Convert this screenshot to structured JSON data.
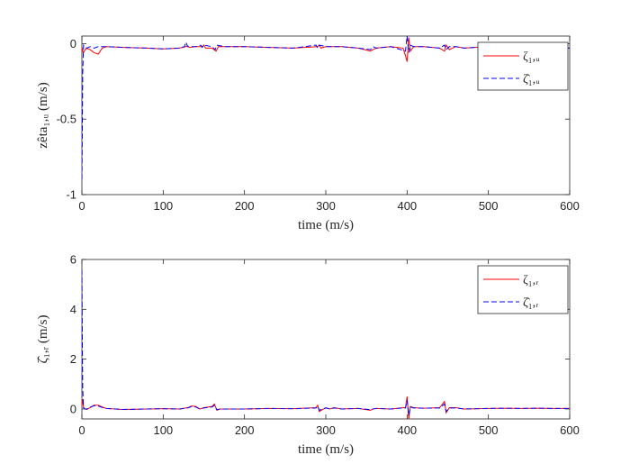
{
  "chart_data": [
    {
      "type": "line",
      "title": "",
      "xlabel": "time (m/s)",
      "ylabel": "zêta₁,ᵤ (m/s)",
      "xlim": [
        0,
        600
      ],
      "ylim": [
        -1,
        0.05
      ],
      "xticks": [
        "0",
        "100",
        "200",
        "300",
        "400",
        "500",
        "600"
      ],
      "yticks": [
        "0",
        "-0.5",
        "-1"
      ],
      "ytick_values": [
        0,
        -0.5,
        -1
      ],
      "grid": false,
      "legend": "top-right",
      "series": [
        {
          "name": "ζ₁,ᵤ",
          "color": "#ff0000",
          "style": "solid",
          "x": [
            0,
            1,
            2,
            4,
            6,
            10,
            15,
            20,
            25,
            30,
            50,
            80,
            100,
            120,
            128,
            130,
            132,
            140,
            148,
            150,
            152,
            160,
            165,
            168,
            175,
            200,
            230,
            260,
            290,
            292,
            294,
            300,
            320,
            340,
            355,
            358,
            362,
            380,
            395,
            398,
            400,
            402,
            404,
            408,
            420,
            440,
            446,
            448,
            452,
            460,
            470,
            500,
            520,
            540,
            560,
            580,
            600
          ],
          "values": [
            -0.02,
            -0.05,
            -0.06,
            -0.04,
            -0.03,
            -0.04,
            -0.06,
            -0.07,
            -0.03,
            -0.02,
            -0.025,
            -0.03,
            -0.035,
            -0.03,
            -0.02,
            -0.015,
            -0.025,
            -0.02,
            -0.02,
            -0.01,
            -0.03,
            -0.03,
            -0.05,
            -0.02,
            -0.02,
            -0.02,
            -0.025,
            -0.03,
            -0.02,
            -0.01,
            -0.03,
            -0.02,
            -0.02,
            -0.03,
            -0.05,
            -0.04,
            -0.03,
            -0.02,
            -0.03,
            -0.08,
            -0.12,
            0.04,
            -0.05,
            -0.02,
            -0.02,
            -0.03,
            -0.05,
            -0.01,
            -0.04,
            -0.02,
            -0.03,
            -0.02,
            -0.03,
            -0.025,
            -0.03,
            -0.03,
            -0.03
          ]
        },
        {
          "name": "ζ̂₁,ᵤ",
          "color": "#0000ff",
          "style": "dashed",
          "x": [
            0,
            0.5,
            1,
            2,
            4,
            6,
            10,
            15,
            20,
            25,
            30,
            50,
            80,
            100,
            120,
            126,
            128,
            130,
            140,
            146,
            148,
            150,
            160,
            164,
            166,
            175,
            200,
            230,
            260,
            288,
            290,
            292,
            300,
            320,
            340,
            355,
            358,
            362,
            380,
            398,
            400,
            402,
            404,
            408,
            420,
            440,
            446,
            448,
            452,
            460,
            470,
            500,
            520,
            540,
            560,
            580,
            600
          ],
          "values": [
            -0.9,
            -0.6,
            -0.2,
            -0.01,
            -0.02,
            -0.03,
            -0.02,
            -0.03,
            -0.02,
            -0.02,
            -0.02,
            -0.025,
            -0.03,
            -0.035,
            -0.03,
            -0.02,
            0.01,
            -0.02,
            -0.02,
            -0.01,
            -0.025,
            -0.01,
            -0.02,
            -0.04,
            -0.01,
            -0.02,
            -0.02,
            -0.025,
            -0.03,
            -0.01,
            -0.03,
            -0.01,
            -0.02,
            -0.02,
            -0.03,
            -0.04,
            -0.02,
            -0.03,
            -0.02,
            -0.05,
            0.05,
            -0.06,
            -0.01,
            -0.02,
            -0.02,
            -0.03,
            -0.01,
            -0.04,
            -0.02,
            -0.02,
            -0.03,
            -0.02,
            -0.03,
            -0.025,
            -0.03,
            -0.03,
            -0.03
          ]
        }
      ]
    },
    {
      "type": "line",
      "title": "",
      "xlabel": "time (m/s)",
      "ylabel": "ζ̂₁,ᵣ (m/s)",
      "xlim": [
        0,
        600
      ],
      "ylim": [
        -0.4,
        6
      ],
      "xticks": [
        "0",
        "100",
        "200",
        "300",
        "400",
        "500",
        "600"
      ],
      "yticks": [
        "6",
        "4",
        "2",
        "0"
      ],
      "ytick_values": [
        6,
        4,
        2,
        0
      ],
      "grid": false,
      "legend": "top-right",
      "series": [
        {
          "name": "ζ₁,ᵣ",
          "color": "#ff0000",
          "style": "solid",
          "x": [
            0,
            1,
            2,
            4,
            6,
            10,
            15,
            20,
            25,
            30,
            50,
            80,
            100,
            120,
            130,
            135,
            140,
            145,
            150,
            160,
            163,
            166,
            170,
            200,
            230,
            260,
            288,
            290,
            292,
            300,
            305,
            310,
            320,
            340,
            355,
            358,
            362,
            380,
            395,
            398,
            400,
            402,
            404,
            408,
            420,
            440,
            446,
            448,
            452,
            460,
            470,
            500,
            520,
            540,
            560,
            580,
            600
          ],
          "values": [
            0.1,
            0.4,
            0.05,
            0.0,
            -0.02,
            0.05,
            0.15,
            0.15,
            0.08,
            0.02,
            -0.02,
            0.0,
            0.01,
            0.0,
            0.05,
            0.12,
            0.1,
            0.0,
            0.05,
            0.1,
            0.2,
            -0.05,
            0.0,
            0.0,
            0.02,
            0.01,
            0.05,
            0.15,
            -0.1,
            0.05,
            0.0,
            0.05,
            0.0,
            0.02,
            -0.05,
            0.0,
            0.02,
            0.0,
            0.05,
            0.05,
            0.5,
            -0.4,
            0.1,
            0.05,
            0.03,
            0.05,
            0.3,
            -0.15,
            0.05,
            0.05,
            0.0,
            0.02,
            0.03,
            0.02,
            0.03,
            0.02,
            0.02
          ]
        },
        {
          "name": "ζ̂₁,ᵣ",
          "color": "#0000ff",
          "style": "dashed",
          "x": [
            0,
            0.5,
            1,
            2,
            4,
            6,
            10,
            15,
            20,
            25,
            30,
            50,
            80,
            100,
            120,
            130,
            135,
            140,
            145,
            150,
            160,
            163,
            166,
            170,
            200,
            230,
            260,
            288,
            290,
            292,
            300,
            305,
            310,
            320,
            340,
            355,
            358,
            362,
            380,
            395,
            398,
            400,
            402,
            404,
            408,
            420,
            440,
            446,
            448,
            452,
            460,
            470,
            500,
            520,
            540,
            560,
            580,
            600
          ],
          "values": [
            5.6,
            3.0,
            0.8,
            0.05,
            0.0,
            0.0,
            0.08,
            0.13,
            0.12,
            0.06,
            0.02,
            -0.02,
            0.0,
            0.01,
            0.0,
            0.04,
            0.1,
            0.08,
            0.0,
            0.04,
            0.08,
            0.15,
            -0.03,
            0.0,
            0.0,
            0.02,
            0.01,
            0.04,
            0.12,
            -0.05,
            0.04,
            0.0,
            0.04,
            0.0,
            0.02,
            -0.03,
            0.0,
            0.02,
            0.0,
            0.04,
            0.04,
            0.35,
            -0.25,
            0.08,
            0.04,
            0.03,
            0.04,
            0.2,
            -0.1,
            0.04,
            0.04,
            0.0,
            0.02,
            0.03,
            0.02,
            0.03,
            0.02,
            0.02
          ]
        }
      ]
    }
  ]
}
